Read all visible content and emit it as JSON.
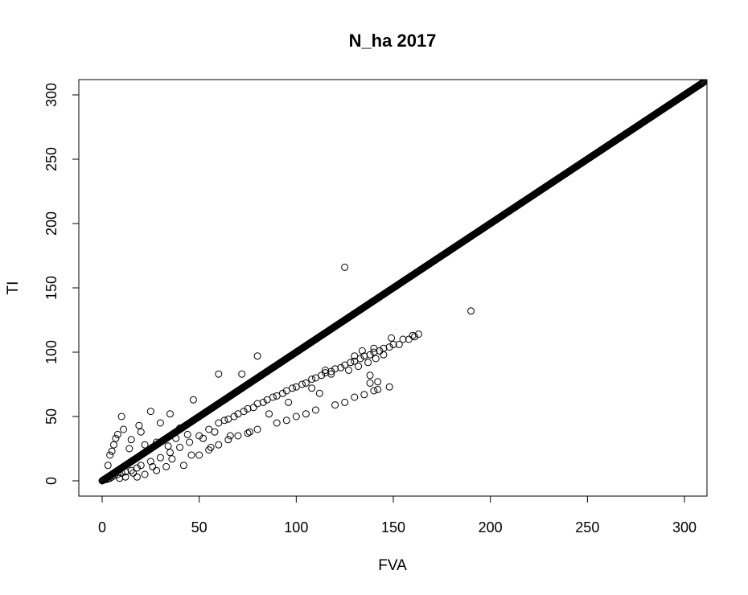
{
  "chart_data": {
    "type": "scatter",
    "title": "N_ha 2017",
    "xlabel": "FVA",
    "ylabel": "TI",
    "xlim": [
      0,
      310
    ],
    "ylim": [
      0,
      310
    ],
    "xticks": [
      "0",
      "50",
      "100",
      "150",
      "200",
      "250",
      "300"
    ],
    "yticks": [
      "0",
      "50",
      "100",
      "150",
      "200",
      "250",
      "300"
    ],
    "marker": "open-circle",
    "grid": false,
    "legend": "none",
    "series": [
      {
        "points": [
          [
            1,
            1
          ],
          [
            2,
            1
          ],
          [
            3,
            1.5
          ],
          [
            4,
            2
          ],
          [
            5,
            3
          ],
          [
            6,
            4
          ],
          [
            8,
            5
          ],
          [
            10,
            6
          ],
          [
            12,
            7
          ],
          [
            15,
            8
          ],
          [
            18,
            10
          ],
          [
            20,
            12
          ],
          [
            25,
            15
          ],
          [
            30,
            18
          ],
          [
            35,
            22
          ],
          [
            40,
            26
          ],
          [
            45,
            30
          ],
          [
            50,
            35
          ],
          [
            55,
            40
          ],
          [
            60,
            45
          ],
          [
            65,
            48
          ],
          [
            70,
            52
          ],
          [
            75,
            56
          ],
          [
            80,
            60
          ],
          [
            85,
            63
          ],
          [
            90,
            66
          ],
          [
            95,
            70
          ],
          [
            100,
            73
          ],
          [
            105,
            76
          ],
          [
            110,
            80
          ],
          [
            115,
            84
          ],
          [
            120,
            87
          ],
          [
            125,
            90
          ],
          [
            130,
            93
          ],
          [
            135,
            97
          ],
          [
            140,
            100
          ],
          [
            145,
            103
          ],
          [
            150,
            106
          ],
          [
            155,
            110
          ],
          [
            160,
            113
          ],
          [
            163,
            114
          ],
          [
            3,
            12
          ],
          [
            4,
            20
          ],
          [
            5,
            23
          ],
          [
            6,
            28
          ],
          [
            7,
            33
          ],
          [
            8,
            36
          ],
          [
            10,
            50
          ],
          [
            15,
            32
          ],
          [
            20,
            38
          ],
          [
            25,
            54
          ],
          [
            30,
            45
          ],
          [
            35,
            52
          ],
          [
            40,
            41
          ],
          [
            47,
            63
          ],
          [
            60,
            83
          ],
          [
            72,
            83
          ],
          [
            80,
            97
          ],
          [
            125,
            166
          ],
          [
            190,
            132
          ],
          [
            18,
            3
          ],
          [
            22,
            5
          ],
          [
            28,
            8
          ],
          [
            33,
            11
          ],
          [
            42,
            12
          ],
          [
            50,
            20
          ],
          [
            55,
            24
          ],
          [
            60,
            28
          ],
          [
            65,
            32
          ],
          [
            70,
            35
          ],
          [
            75,
            37
          ],
          [
            80,
            40
          ],
          [
            90,
            45
          ],
          [
            95,
            47
          ],
          [
            100,
            50
          ],
          [
            105,
            52
          ],
          [
            110,
            55
          ],
          [
            120,
            59
          ],
          [
            125,
            61
          ],
          [
            130,
            65
          ],
          [
            135,
            67
          ],
          [
            140,
            70
          ],
          [
            142,
            71
          ],
          [
            148,
            73
          ],
          [
            138,
            76
          ],
          [
            142,
            77
          ],
          [
            138,
            82
          ],
          [
            118,
            83
          ],
          [
            115,
            86
          ],
          [
            108,
            72
          ],
          [
            112,
            68
          ],
          [
            96,
            61
          ],
          [
            86,
            52
          ],
          [
            76,
            38
          ],
          [
            66,
            35
          ],
          [
            56,
            26
          ],
          [
            46,
            20
          ],
          [
            36,
            17
          ],
          [
            26,
            11
          ],
          [
            16,
            6
          ],
          [
            12,
            3
          ],
          [
            9,
            2
          ],
          [
            14,
            25
          ],
          [
            22,
            28
          ],
          [
            11,
            40
          ],
          [
            19,
            43
          ],
          [
            28,
            30
          ],
          [
            34,
            27
          ],
          [
            38,
            33
          ],
          [
            44,
            36
          ],
          [
            52,
            33
          ],
          [
            58,
            38
          ],
          [
            63,
            47
          ],
          [
            68,
            50
          ],
          [
            73,
            54
          ],
          [
            78,
            57
          ],
          [
            83,
            61
          ],
          [
            88,
            65
          ],
          [
            93,
            68
          ],
          [
            98,
            72
          ],
          [
            103,
            75
          ],
          [
            108,
            79
          ],
          [
            113,
            82
          ],
          [
            118,
            85
          ],
          [
            123,
            88
          ],
          [
            128,
            92
          ],
          [
            133,
            95
          ],
          [
            138,
            98
          ],
          [
            143,
            101
          ],
          [
            148,
            104
          ],
          [
            153,
            106
          ],
          [
            158,
            110
          ],
          [
            161,
            112
          ],
          [
            149,
            111
          ],
          [
            145,
            98
          ],
          [
            141,
            95
          ],
          [
            137,
            92
          ],
          [
            132,
            89
          ],
          [
            127,
            86
          ],
          [
            130,
            97
          ],
          [
            134,
            101
          ],
          [
            140,
            103
          ]
        ],
        "identity_band": {
          "from": 0,
          "to": 310
        }
      }
    ]
  }
}
